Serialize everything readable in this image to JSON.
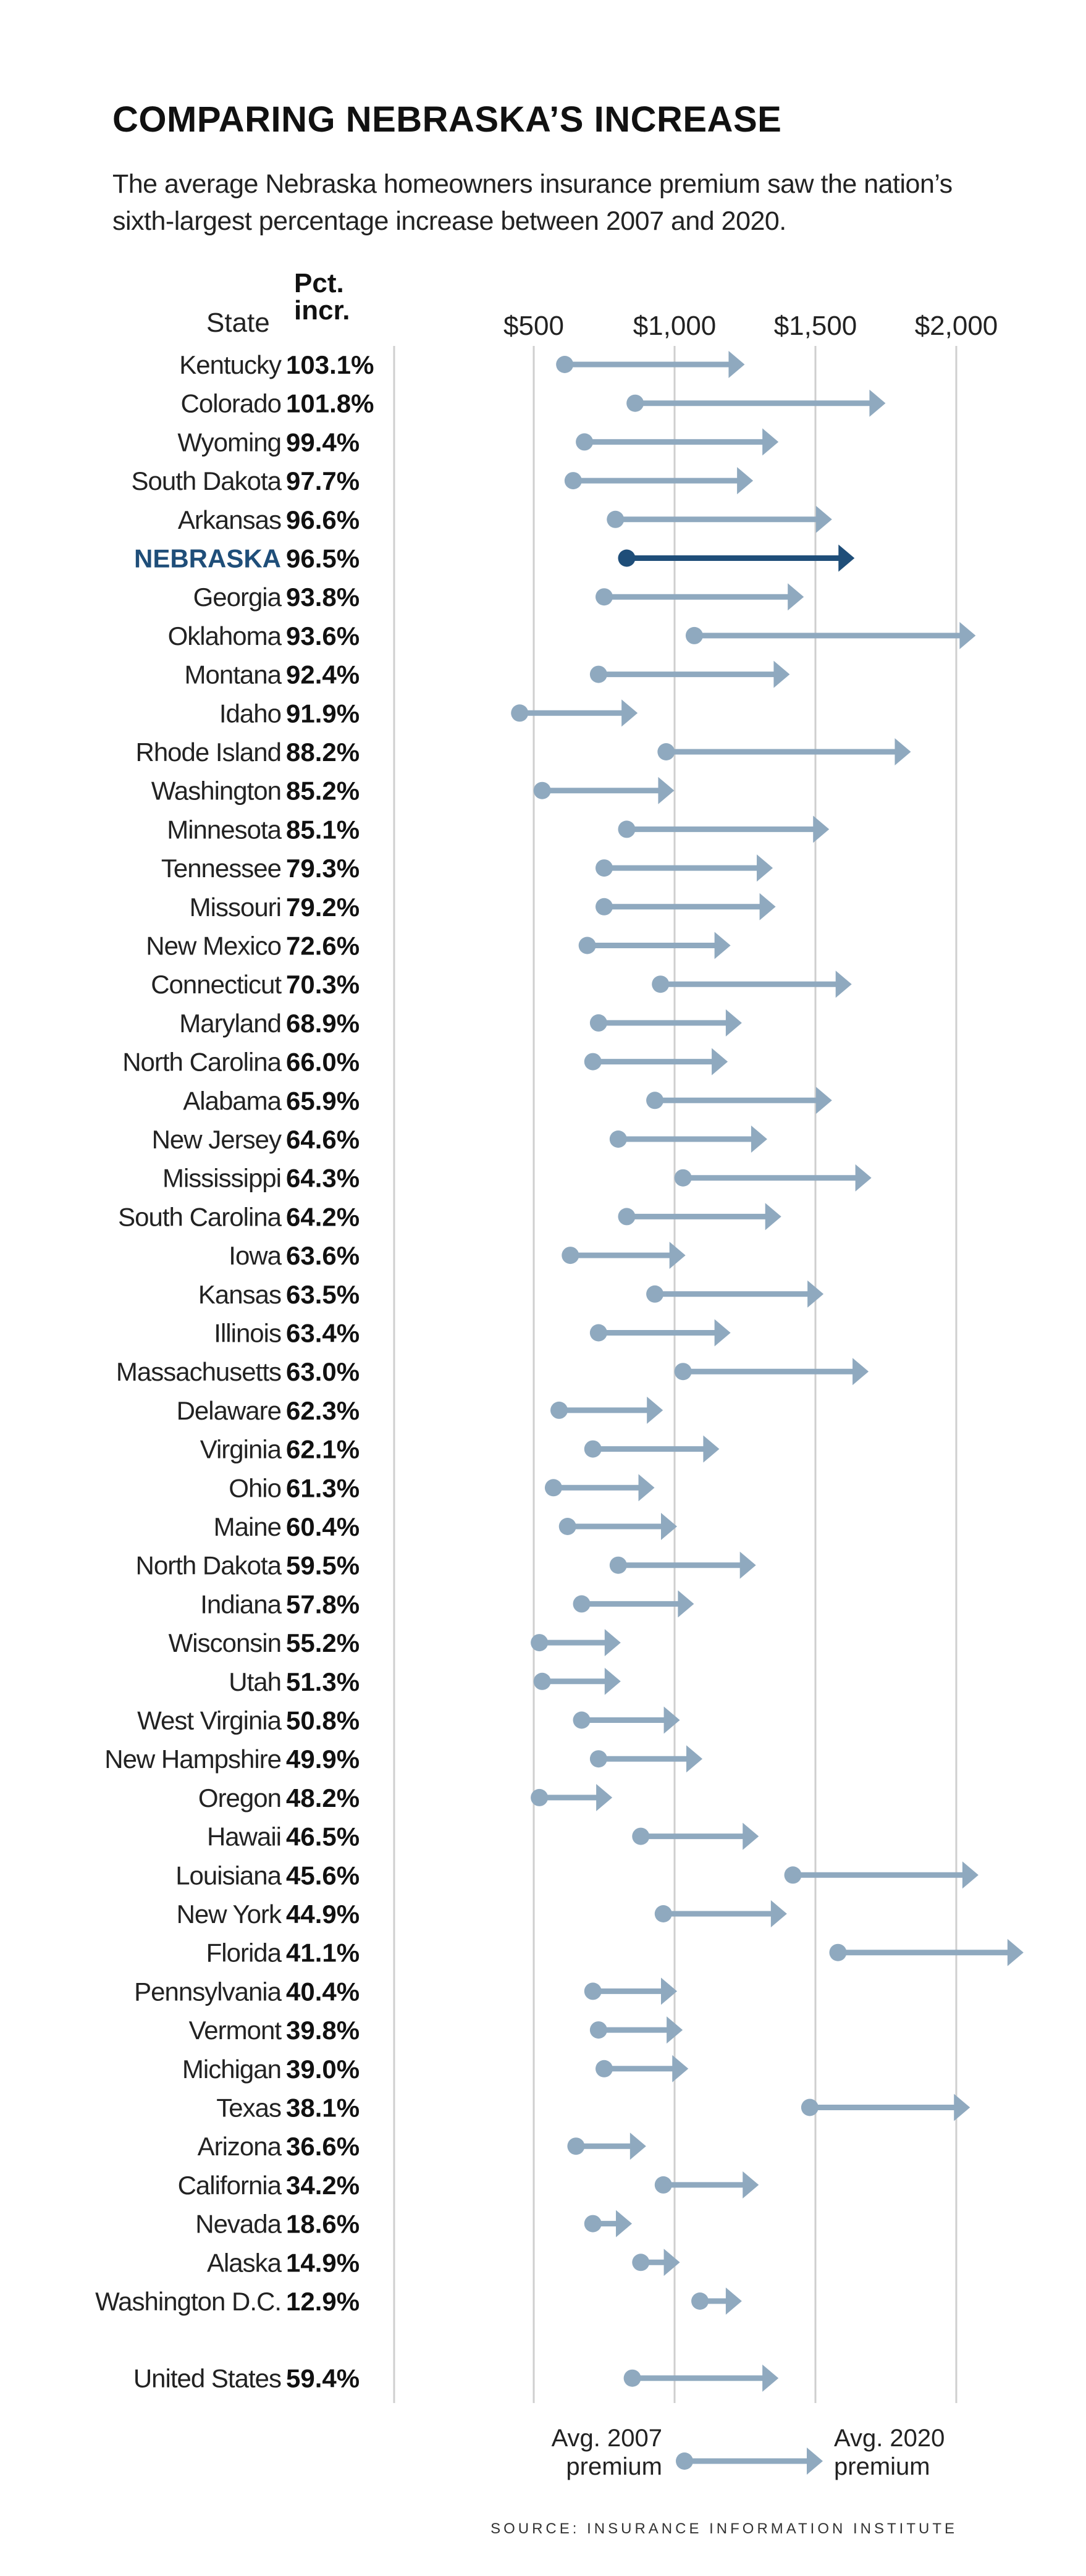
{
  "title": "COMPARING NEBRASKA’S INCREASE",
  "subtitle": "The average Nebraska homeowners insurance premium saw the nation’s sixth-largest percentage increase between 2007 and 2020.",
  "headers": {
    "state": "State",
    "pct": "Pct. incr."
  },
  "source": "SOURCE: INSURANCE INFORMATION INSTITUTE",
  "legend": {
    "start": "Avg. 2007 premium",
    "end": "Avg. 2020 premium"
  },
  "colors": {
    "arrow": "#8fa9bf",
    "highlight": "#1f4e79",
    "grid": "#cfcfcf"
  },
  "chart_data": {
    "type": "dot-arrow",
    "x_ticks": [
      "$500",
      "$1,000",
      "$1,500",
      "$2,000"
    ],
    "x_tick_values": [
      500,
      1000,
      1500,
      2000
    ],
    "xlim": [
      500,
      2000
    ],
    "highlight": "NEBRASKA",
    "rows": [
      {
        "state": "Kentucky",
        "pct": "103.1%",
        "v2007": 610,
        "v2020": 1240
      },
      {
        "state": "Colorado",
        "pct": "101.8%",
        "v2007": 860,
        "v2020": 1740
      },
      {
        "state": "Wyoming",
        "pct": "99.4%",
        "v2007": 680,
        "v2020": 1360
      },
      {
        "state": "South Dakota",
        "pct": "97.7%",
        "v2007": 640,
        "v2020": 1270
      },
      {
        "state": "Arkansas",
        "pct": "96.6%",
        "v2007": 790,
        "v2020": 1550
      },
      {
        "state": "NEBRASKA",
        "pct": "96.5%",
        "v2007": 830,
        "v2020": 1630
      },
      {
        "state": "Georgia",
        "pct": "93.8%",
        "v2007": 750,
        "v2020": 1450
      },
      {
        "state": "Oklahoma",
        "pct": "93.6%",
        "v2007": 1070,
        "v2020": 2060
      },
      {
        "state": "Montana",
        "pct": "92.4%",
        "v2007": 730,
        "v2020": 1400
      },
      {
        "state": "Idaho",
        "pct": "91.9%",
        "v2007": 450,
        "v2020": 860
      },
      {
        "state": "Rhode Island",
        "pct": "88.2%",
        "v2007": 970,
        "v2020": 1830
      },
      {
        "state": "Washington",
        "pct": "85.2%",
        "v2007": 530,
        "v2020": 990
      },
      {
        "state": "Minnesota",
        "pct": "85.1%",
        "v2007": 830,
        "v2020": 1540
      },
      {
        "state": "Tennessee",
        "pct": "79.3%",
        "v2007": 750,
        "v2020": 1340
      },
      {
        "state": "Missouri",
        "pct": "79.2%",
        "v2007": 750,
        "v2020": 1350
      },
      {
        "state": "New Mexico",
        "pct": "72.6%",
        "v2007": 690,
        "v2020": 1190
      },
      {
        "state": "Connecticut",
        "pct": "70.3%",
        "v2007": 950,
        "v2020": 1620
      },
      {
        "state": "Maryland",
        "pct": "68.9%",
        "v2007": 730,
        "v2020": 1230
      },
      {
        "state": "North Carolina",
        "pct": "66.0%",
        "v2007": 710,
        "v2020": 1180
      },
      {
        "state": "Alabama",
        "pct": "65.9%",
        "v2007": 930,
        "v2020": 1550
      },
      {
        "state": "New Jersey",
        "pct": "64.6%",
        "v2007": 800,
        "v2020": 1320
      },
      {
        "state": "Mississippi",
        "pct": "64.3%",
        "v2007": 1030,
        "v2020": 1690
      },
      {
        "state": "South Carolina",
        "pct": "64.2%",
        "v2007": 830,
        "v2020": 1370
      },
      {
        "state": "Iowa",
        "pct": "63.6%",
        "v2007": 630,
        "v2020": 1030
      },
      {
        "state": "Kansas",
        "pct": "63.5%",
        "v2007": 930,
        "v2020": 1520
      },
      {
        "state": "Illinois",
        "pct": "63.4%",
        "v2007": 730,
        "v2020": 1190
      },
      {
        "state": "Massachusetts",
        "pct": "63.0%",
        "v2007": 1030,
        "v2020": 1680
      },
      {
        "state": "Delaware",
        "pct": "62.3%",
        "v2007": 590,
        "v2020": 950
      },
      {
        "state": "Virginia",
        "pct": "62.1%",
        "v2007": 710,
        "v2020": 1150
      },
      {
        "state": "Ohio",
        "pct": "61.3%",
        "v2007": 570,
        "v2020": 920
      },
      {
        "state": "Maine",
        "pct": "60.4%",
        "v2007": 620,
        "v2020": 1000
      },
      {
        "state": "North Dakota",
        "pct": "59.5%",
        "v2007": 800,
        "v2020": 1280
      },
      {
        "state": "Indiana",
        "pct": "57.8%",
        "v2007": 670,
        "v2020": 1060
      },
      {
        "state": "Wisconsin",
        "pct": "55.2%",
        "v2007": 520,
        "v2020": 800
      },
      {
        "state": "Utah",
        "pct": "51.3%",
        "v2007": 530,
        "v2020": 800
      },
      {
        "state": "West Virginia",
        "pct": "50.8%",
        "v2007": 670,
        "v2020": 1010
      },
      {
        "state": "New Hampshire",
        "pct": "49.9%",
        "v2007": 730,
        "v2020": 1090
      },
      {
        "state": "Oregon",
        "pct": "48.2%",
        "v2007": 520,
        "v2020": 770
      },
      {
        "state": "Hawaii",
        "pct": "46.5%",
        "v2007": 880,
        "v2020": 1290
      },
      {
        "state": "Louisiana",
        "pct": "45.6%",
        "v2007": 1420,
        "v2020": 2070
      },
      {
        "state": "New York",
        "pct": "44.9%",
        "v2007": 960,
        "v2020": 1390
      },
      {
        "state": "Florida",
        "pct": "41.1%",
        "v2007": 1580,
        "v2020": 2230
      },
      {
        "state": "Pennsylvania",
        "pct": "40.4%",
        "v2007": 710,
        "v2020": 1000
      },
      {
        "state": "Vermont",
        "pct": "39.8%",
        "v2007": 730,
        "v2020": 1020
      },
      {
        "state": "Michigan",
        "pct": "39.0%",
        "v2007": 750,
        "v2020": 1040
      },
      {
        "state": "Texas",
        "pct": "38.1%",
        "v2007": 1480,
        "v2020": 2040
      },
      {
        "state": "Arizona",
        "pct": "36.6%",
        "v2007": 650,
        "v2020": 890
      },
      {
        "state": "California",
        "pct": "34.2%",
        "v2007": 960,
        "v2020": 1290
      },
      {
        "state": "Nevada",
        "pct": "18.6%",
        "v2007": 710,
        "v2020": 840
      },
      {
        "state": "Alaska",
        "pct": "14.9%",
        "v2007": 880,
        "v2020": 1010
      },
      {
        "state": "Washington D.C.",
        "pct": "12.9%",
        "v2007": 1090,
        "v2020": 1230
      }
    ],
    "summary": {
      "state": "United States",
      "pct": "59.4%",
      "v2007": 850,
      "v2020": 1360
    }
  }
}
